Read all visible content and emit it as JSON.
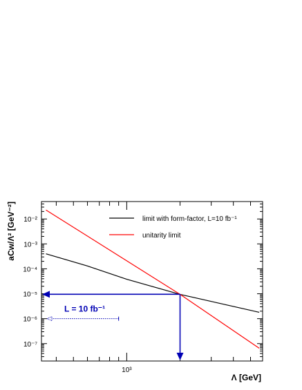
{
  "chart_data": {
    "type": "line",
    "xlabel": "Λ [GeV]",
    "ylabel": "aCw/Λ² [GeV⁻²]",
    "x_scale": "log",
    "y_scale": "log",
    "xlim": [
      330,
      5850
    ],
    "ylim": [
      2e-08,
      0.05
    ],
    "x_ticks": [
      {
        "value": 1000,
        "label": "10³"
      }
    ],
    "y_ticks": [
      {
        "value": 1e-07,
        "label": "10⁻⁷"
      },
      {
        "value": 1e-06,
        "label": "10⁻⁶"
      },
      {
        "value": 1e-05,
        "label": "10⁻⁵"
      },
      {
        "value": 0.0001,
        "label": "10⁻⁴"
      },
      {
        "value": 0.001,
        "label": "10⁻³"
      },
      {
        "value": 0.01,
        "label": "10⁻²"
      }
    ],
    "grid": false,
    "legend_position": "top-right",
    "series": [
      {
        "name": "limit with form-factor, L=10 fb⁻¹",
        "color": "#000000",
        "x": [
          350,
          600,
          1000,
          2000,
          5600
        ],
        "y": [
          0.0004,
          0.00013,
          3.8e-05,
          9.5e-06,
          1.8e-06
        ]
      },
      {
        "name": "unitarity limit",
        "color": "#ff0000",
        "x": [
          350,
          2000,
          5600
        ],
        "y": [
          0.023,
          9.5e-06,
          6.5e-08
        ]
      }
    ],
    "annotations": {
      "label": "L = 10 fb⁻¹",
      "color": "#0000b4",
      "crossing_point": {
        "x": 2000,
        "y": 9.5e-06
      },
      "dotted_arrow": {
        "x_from": 900,
        "x_to": 355,
        "y": 1e-06
      }
    }
  }
}
